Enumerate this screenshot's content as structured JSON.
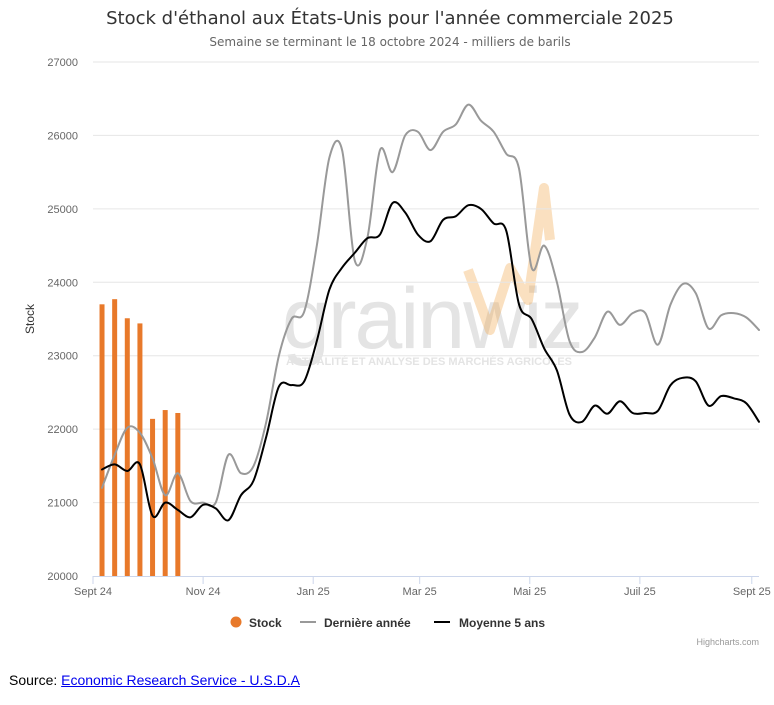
{
  "chart_data": {
    "type": "bar+line",
    "title": "Stock d'éthanol aux États-Unis pour l'année commerciale 2025",
    "subtitle": "Semaine se terminant le 18 octobre 2024 - milliers de barils",
    "ylabel": "Stock",
    "ylim": [
      20000,
      27000
    ],
    "yticks": [
      20000,
      21000,
      22000,
      23000,
      24000,
      25000,
      26000,
      27000
    ],
    "x_start": "2024-09-01",
    "x_end": "2025-09-05",
    "xticks": [
      {
        "date": "2024-09-01",
        "label": "Sept 24"
      },
      {
        "date": "2024-11-01",
        "label": "Nov 24"
      },
      {
        "date": "2025-01-01",
        "label": "Jan 25"
      },
      {
        "date": "2025-03-01",
        "label": "Mar 25"
      },
      {
        "date": "2025-05-01",
        "label": "Mai 25"
      },
      {
        "date": "2025-07-01",
        "label": "Juil 25"
      },
      {
        "date": "2025-09-01",
        "label": "Sept 25"
      }
    ],
    "grid": true,
    "legend_position": "bottom-center",
    "series": [
      {
        "name": "Stock",
        "type": "bar",
        "color": "#e8792a",
        "data": [
          [
            "2024-09-06",
            23700
          ],
          [
            "2024-09-13",
            23770
          ],
          [
            "2024-09-20",
            23510
          ],
          [
            "2024-09-27",
            23440
          ],
          [
            "2024-10-04",
            22140
          ],
          [
            "2024-10-11",
            22260
          ],
          [
            "2024-10-18",
            22220
          ]
        ]
      },
      {
        "name": "Dernière année",
        "type": "line",
        "color": "#999999",
        "data": [
          [
            "2024-09-06",
            21200
          ],
          [
            "2024-09-13",
            21650
          ],
          [
            "2024-09-20",
            22020
          ],
          [
            "2024-09-27",
            21950
          ],
          [
            "2024-10-04",
            21600
          ],
          [
            "2024-10-11",
            21100
          ],
          [
            "2024-10-18",
            21400
          ],
          [
            "2024-10-25",
            21020
          ],
          [
            "2024-11-01",
            21000
          ],
          [
            "2024-11-08",
            21000
          ],
          [
            "2024-11-15",
            21650
          ],
          [
            "2024-11-22",
            21400
          ],
          [
            "2024-11-29",
            21500
          ],
          [
            "2024-12-06",
            22100
          ],
          [
            "2024-12-13",
            23000
          ],
          [
            "2024-12-20",
            23500
          ],
          [
            "2024-12-27",
            23600
          ],
          [
            "2025-01-03",
            24500
          ],
          [
            "2025-01-10",
            25700
          ],
          [
            "2025-01-17",
            25800
          ],
          [
            "2025-01-24",
            24300
          ],
          [
            "2025-01-31",
            24600
          ],
          [
            "2025-02-07",
            25800
          ],
          [
            "2025-02-14",
            25500
          ],
          [
            "2025-02-21",
            26000
          ],
          [
            "2025-02-28",
            26050
          ],
          [
            "2025-03-07",
            25800
          ],
          [
            "2025-03-14",
            26050
          ],
          [
            "2025-03-21",
            26150
          ],
          [
            "2025-03-28",
            26420
          ],
          [
            "2025-04-04",
            26200
          ],
          [
            "2025-04-11",
            26050
          ],
          [
            "2025-04-18",
            25750
          ],
          [
            "2025-04-25",
            25550
          ],
          [
            "2025-05-02",
            24200
          ],
          [
            "2025-05-09",
            24500
          ],
          [
            "2025-05-16",
            24000
          ],
          [
            "2025-05-23",
            23200
          ],
          [
            "2025-05-30",
            23050
          ],
          [
            "2025-06-06",
            23250
          ],
          [
            "2025-06-13",
            23600
          ],
          [
            "2025-06-20",
            23420
          ],
          [
            "2025-06-27",
            23580
          ],
          [
            "2025-07-04",
            23580
          ],
          [
            "2025-07-11",
            23150
          ],
          [
            "2025-07-18",
            23700
          ],
          [
            "2025-07-25",
            23980
          ],
          [
            "2025-08-01",
            23850
          ],
          [
            "2025-08-08",
            23370
          ],
          [
            "2025-08-15",
            23550
          ],
          [
            "2025-08-22",
            23580
          ],
          [
            "2025-08-29",
            23520
          ],
          [
            "2025-09-05",
            23350
          ]
        ]
      },
      {
        "name": "Moyenne 5 ans",
        "type": "line",
        "color": "#000000",
        "data": [
          [
            "2024-09-06",
            21450
          ],
          [
            "2024-09-13",
            21520
          ],
          [
            "2024-09-20",
            21430
          ],
          [
            "2024-09-27",
            21520
          ],
          [
            "2024-10-04",
            20820
          ],
          [
            "2024-10-11",
            21000
          ],
          [
            "2024-10-18",
            20900
          ],
          [
            "2024-10-25",
            20800
          ],
          [
            "2024-11-01",
            20970
          ],
          [
            "2024-11-08",
            20920
          ],
          [
            "2024-11-15",
            20760
          ],
          [
            "2024-11-22",
            21100
          ],
          [
            "2024-11-29",
            21300
          ],
          [
            "2024-12-06",
            21900
          ],
          [
            "2024-12-13",
            22580
          ],
          [
            "2024-12-20",
            22600
          ],
          [
            "2024-12-27",
            22650
          ],
          [
            "2025-01-03",
            23200
          ],
          [
            "2025-01-10",
            23900
          ],
          [
            "2025-01-17",
            24200
          ],
          [
            "2025-01-24",
            24400
          ],
          [
            "2025-01-31",
            24600
          ],
          [
            "2025-02-07",
            24650
          ],
          [
            "2025-02-14",
            25080
          ],
          [
            "2025-02-21",
            24950
          ],
          [
            "2025-02-28",
            24650
          ],
          [
            "2025-03-07",
            24560
          ],
          [
            "2025-03-14",
            24850
          ],
          [
            "2025-03-21",
            24900
          ],
          [
            "2025-03-28",
            25050
          ],
          [
            "2025-04-04",
            25000
          ],
          [
            "2025-04-11",
            24800
          ],
          [
            "2025-04-18",
            24700
          ],
          [
            "2025-04-25",
            23700
          ],
          [
            "2025-05-02",
            23500
          ],
          [
            "2025-05-09",
            23100
          ],
          [
            "2025-05-16",
            22800
          ],
          [
            "2025-05-23",
            22200
          ],
          [
            "2025-05-30",
            22100
          ],
          [
            "2025-06-06",
            22320
          ],
          [
            "2025-06-13",
            22210
          ],
          [
            "2025-06-20",
            22380
          ],
          [
            "2025-06-27",
            22220
          ],
          [
            "2025-07-04",
            22220
          ],
          [
            "2025-07-11",
            22250
          ],
          [
            "2025-07-18",
            22600
          ],
          [
            "2025-07-25",
            22700
          ],
          [
            "2025-08-01",
            22650
          ],
          [
            "2025-08-08",
            22320
          ],
          [
            "2025-08-15",
            22450
          ],
          [
            "2025-08-22",
            22420
          ],
          [
            "2025-08-29",
            22350
          ],
          [
            "2025-09-05",
            22100
          ]
        ]
      }
    ]
  },
  "watermark": {
    "logo_text": "grainwiz",
    "tagline": "ACTUALITÉ ET ANALYSE DES MARCHÉS AGRICOLES",
    "accent_color": "#f2a54a"
  },
  "credits": "Highcharts.com",
  "source": {
    "prefix": "Source: ",
    "link_text": "Economic Research Service - U.S.D.A"
  }
}
